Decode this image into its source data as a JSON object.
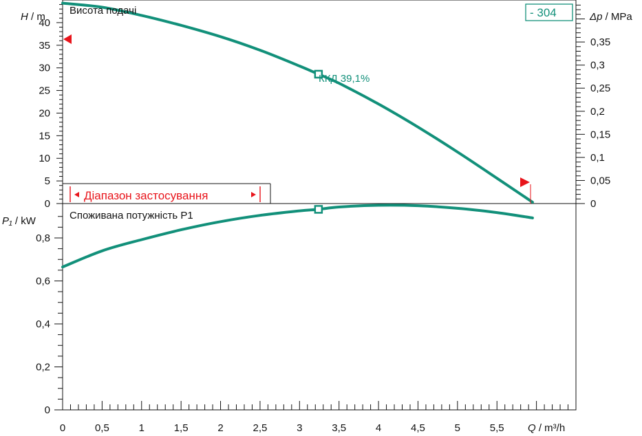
{
  "badge": "- 304",
  "colors": {
    "curve": "#12907a",
    "accent": "#e8141b",
    "axis": "#111111",
    "background": "#ffffff"
  },
  "chart_data": [
    {
      "type": "line",
      "title": "Висота подачі",
      "xlabel": {
        "sym": "Q",
        "unit": " / m³/h"
      },
      "ylabel_left": {
        "sym": "H",
        "unit": " / m"
      },
      "ylabel_right": {
        "sym": "Δp",
        "unit": " / MPa"
      },
      "xlim": [
        0,
        6.5
      ],
      "ylim": [
        0,
        45
      ],
      "ylim_right": [
        0,
        0.441
      ],
      "x_ticks": [
        "0",
        "0,5",
        "1",
        "1,5",
        "2",
        "2,5",
        "3",
        "3,5",
        "4",
        "4,5",
        "5",
        "5,5"
      ],
      "y_ticks_left": [
        "0",
        "5",
        "10",
        "15",
        "20",
        "25",
        "30",
        "35",
        "40"
      ],
      "y_ticks_right": [
        "0",
        "0,05",
        "0,1",
        "0,15",
        "0,2",
        "0,25",
        "0,3",
        "0,35"
      ],
      "series": [
        {
          "x": [
            0,
            0.5,
            1,
            1.5,
            2,
            2.5,
            3,
            3.24,
            3.5,
            4,
            4.5,
            5,
            5.5,
            5.95
          ],
          "y": [
            44.3,
            43.4,
            41.6,
            39.4,
            36.9,
            33.9,
            30.4,
            28.6,
            26.6,
            22.0,
            16.9,
            11.4,
            5.6,
            0.3
          ]
        }
      ],
      "operating_point": {
        "x": 3.24,
        "y": 28.6,
        "label": "ККД  39,1%"
      },
      "markers": [
        {
          "name": "max-head",
          "x": 0,
          "y": 40
        },
        {
          "name": "max-flow",
          "x": 5.95,
          "y": 5.3
        }
      ],
      "application_range": {
        "label": "Діапазон застосування",
        "x": [
          0.05,
          2.6
        ]
      }
    },
    {
      "type": "line",
      "title": "Споживана потужність P1",
      "ylabel": {
        "sym": "P₁",
        "unit": " / kW"
      },
      "xlim": [
        0,
        6.5
      ],
      "ylim": [
        0,
        0.96
      ],
      "y_ticks": [
        "0",
        "0,2",
        "0,4",
        "0,6",
        "0,8"
      ],
      "series": [
        {
          "x": [
            0,
            0.5,
            1,
            1.5,
            2,
            2.5,
            3,
            3.24,
            3.5,
            4,
            4.5,
            5,
            5.5,
            5.95
          ],
          "y": [
            0.665,
            0.74,
            0.792,
            0.838,
            0.876,
            0.905,
            0.926,
            0.933,
            0.944,
            0.952,
            0.95,
            0.938,
            0.918,
            0.893
          ]
        }
      ],
      "operating_point": {
        "x": 3.24,
        "y": 0.933
      }
    }
  ]
}
